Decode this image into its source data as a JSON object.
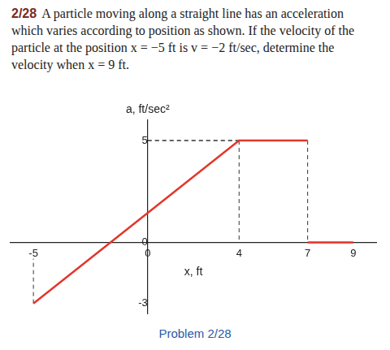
{
  "chart_data": {
    "type": "line",
    "title": "2/28",
    "subtitle": "A particle moving along a straight line has an acceleration which varies according to position as shown. If the velocity of the particle at the position x = −5 ft is v = −2 ft/sec, determine the velocity when x = 9 ft.",
    "x_label": "x, ft",
    "y_label": "a, ft/sec²",
    "annotations": [
      "Problem 2/28"
    ],
    "x": [
      -5,
      4,
      7,
      7,
      7,
      9
    ],
    "values": [
      -3,
      5,
      5,
      null,
      0,
      0
    ],
    "color": "#e2372a",
    "xlim": [
      -6,
      10
    ],
    "ylim": [
      -3.5,
      6
    ],
    "xticks": [
      -5,
      0,
      4,
      7,
      9
    ],
    "yticks": [
      -3,
      0,
      5
    ],
    "grid": false
  }
}
